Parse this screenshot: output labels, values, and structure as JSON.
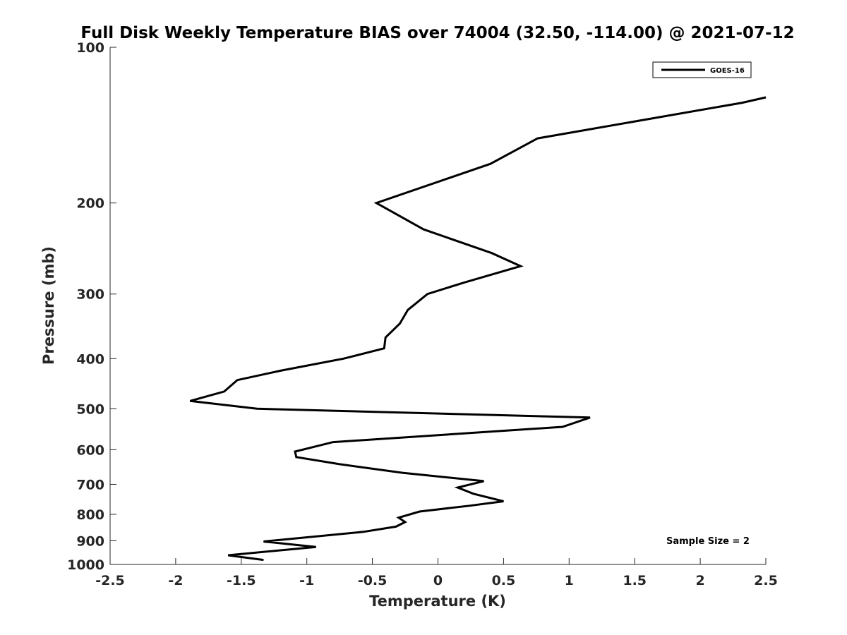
{
  "chart_data": {
    "type": "line",
    "title": "Full Disk Weekly Temperature BIAS over 74004 (32.50, -114.00) @ 2021-07-12",
    "xlabel": "Temperature (K)",
    "ylabel": "Pressure (mb)",
    "xlim": [
      -2.5,
      2.5
    ],
    "ylim": [
      100,
      1000
    ],
    "y_scale": "log",
    "y_reversed": true,
    "grid": false,
    "legend_position": "top-right",
    "x_ticks": [
      "-2.5",
      "-2",
      "-1.5",
      "-1",
      "-0.5",
      "0",
      "0.5",
      "1",
      "1.5",
      "2",
      "2.5"
    ],
    "y_ticks": [
      "100",
      "200",
      "300",
      "400",
      "500",
      "600",
      "700",
      "800",
      "900",
      "1000"
    ],
    "annotation": "Sample Size = 2",
    "series": [
      {
        "name": "GOES-16",
        "color": "#000000",
        "points": [
          {
            "x": 2.5,
            "y": 125
          },
          {
            "x": 2.32,
            "y": 128
          },
          {
            "x": 0.76,
            "y": 150
          },
          {
            "x": 0.4,
            "y": 168
          },
          {
            "x": -0.47,
            "y": 200
          },
          {
            "x": -0.11,
            "y": 225
          },
          {
            "x": 0.41,
            "y": 250
          },
          {
            "x": 0.63,
            "y": 265
          },
          {
            "x": 0.2,
            "y": 285
          },
          {
            "x": -0.08,
            "y": 300
          },
          {
            "x": -0.23,
            "y": 322
          },
          {
            "x": -0.29,
            "y": 342
          },
          {
            "x": -0.4,
            "y": 364
          },
          {
            "x": -0.41,
            "y": 382
          },
          {
            "x": -0.72,
            "y": 400
          },
          {
            "x": -1.2,
            "y": 422
          },
          {
            "x": -1.53,
            "y": 440
          },
          {
            "x": -1.63,
            "y": 463
          },
          {
            "x": -1.89,
            "y": 483
          },
          {
            "x": -1.38,
            "y": 500
          },
          {
            "x": 1.16,
            "y": 520
          },
          {
            "x": 0.95,
            "y": 542
          },
          {
            "x": -0.8,
            "y": 580
          },
          {
            "x": -1.09,
            "y": 605
          },
          {
            "x": -1.08,
            "y": 620
          },
          {
            "x": -0.75,
            "y": 640
          },
          {
            "x": -0.27,
            "y": 665
          },
          {
            "x": 0.35,
            "y": 690
          },
          {
            "x": 0.15,
            "y": 710
          },
          {
            "x": 0.27,
            "y": 730
          },
          {
            "x": 0.5,
            "y": 755
          },
          {
            "x": 0.24,
            "y": 770
          },
          {
            "x": -0.14,
            "y": 790
          },
          {
            "x": -0.3,
            "y": 812
          },
          {
            "x": -0.25,
            "y": 828
          },
          {
            "x": -0.32,
            "y": 845
          },
          {
            "x": -0.57,
            "y": 865
          },
          {
            "x": -1.33,
            "y": 903
          },
          {
            "x": -0.93,
            "y": 925
          },
          {
            "x": -1.6,
            "y": 960
          },
          {
            "x": -1.33,
            "y": 980
          }
        ]
      }
    ]
  }
}
